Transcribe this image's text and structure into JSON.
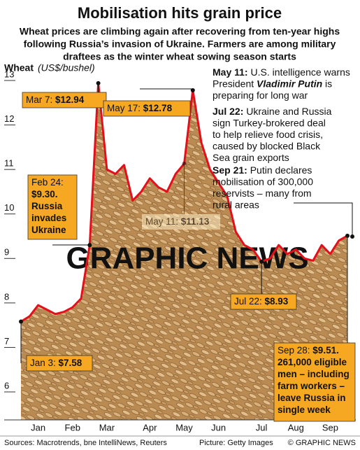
{
  "chart_data": {
    "type": "line",
    "title": "Mobilisation hits grain price",
    "subtitle": [
      "Wheat prices are climbing again after recovering from ten-year highs",
      "following Russia’s invasion of Ukraine. Farmers are among military",
      "draftees as the winter wheat sowing season starts"
    ],
    "y_label": "Wheat",
    "y_unit": "(US$/bushel)",
    "categories": [
      null,
      null,
      "Jan",
      null,
      null,
      null,
      "Feb",
      null,
      null,
      null,
      "Mar",
      null,
      null,
      null,
      null,
      "Apr",
      null,
      null,
      null,
      "May",
      null,
      null,
      null,
      "Jun",
      null,
      null,
      null,
      null,
      "Jul",
      null,
      null,
      null,
      "Aug",
      null,
      null,
      null,
      "Sep",
      null,
      null
    ],
    "series": [
      {
        "name": "Wheat",
        "color": "#e3101b",
        "values": [
          7.58,
          7.7,
          7.95,
          7.85,
          7.75,
          7.8,
          7.9,
          8.1,
          9.3,
          12.94,
          11.0,
          10.9,
          11.1,
          10.3,
          10.5,
          10.8,
          10.6,
          10.5,
          10.9,
          11.13,
          12.78,
          11.6,
          11.0,
          10.7,
          10.4,
          9.6,
          9.3,
          9.2,
          8.93,
          9.0,
          9.3,
          9.1,
          9.2,
          9.0,
          8.95,
          9.3,
          9.1,
          9.4,
          9.51
        ]
      }
    ],
    "ylim": [
      5.7,
      13.2
    ],
    "yticks": [
      6,
      7,
      8,
      9,
      10,
      11,
      12,
      13
    ],
    "callouts": [
      {
        "point": 9,
        "lines": [
          [
            {
              "t": "Mar 7: "
            },
            {
              "t": "$12.94",
              "b": true
            }
          ]
        ]
      },
      {
        "point": 0,
        "lines": [
          [
            {
              "t": "Jan 3: "
            },
            {
              "t": "$7.58",
              "b": true
            }
          ]
        ]
      },
      {
        "point": 8,
        "lines": [
          [
            {
              "t": "Feb 24:"
            }
          ],
          [
            {
              "t": "$9.30.",
              "b": true
            }
          ],
          [
            {
              "t": "Russia",
              "b": true
            }
          ],
          [
            {
              "t": "invades",
              "b": true
            }
          ],
          [
            {
              "t": "Ukraine",
              "b": true
            }
          ]
        ]
      },
      {
        "point": 20,
        "lines": [
          [
            {
              "t": "May 17: "
            },
            {
              "t": "$12.78",
              "b": true
            }
          ]
        ]
      },
      {
        "point": 19,
        "faded": true,
        "lines": [
          [
            {
              "t": "May 11: "
            },
            {
              "t": "$11.13",
              "b": true
            }
          ]
        ]
      },
      {
        "point": 28,
        "lines": [
          [
            {
              "t": "Jul 22: "
            },
            {
              "t": "$8.93",
              "b": true
            }
          ]
        ]
      },
      {
        "point": 38,
        "lines": [
          [
            {
              "t": "Sep 28: "
            },
            {
              "t": "$9.51.",
              "b": true
            }
          ],
          [
            {
              "t": "261,000 eligible",
              "b": true
            }
          ],
          [
            {
              "t": "men – including",
              "b": true
            }
          ],
          [
            {
              "t": "farm workers –",
              "b": true
            }
          ],
          [
            {
              "t": "leave Russia in",
              "b": true
            }
          ],
          [
            {
              "t": "single week",
              "b": true
            }
          ]
        ]
      }
    ],
    "notes": [
      {
        "lines": [
          [
            {
              "t": "May 11: ",
              "b": true
            },
            {
              "t": "U.S. intelligence warns"
            }
          ],
          [
            {
              "t": "President "
            },
            {
              "t": "Vladimir Putin",
              "b": true,
              "i": true
            },
            {
              "t": " is"
            }
          ],
          [
            {
              "t": "preparing for long war"
            }
          ]
        ]
      },
      {
        "lines": [
          [
            {
              "t": "Jul 22: ",
              "b": true
            },
            {
              "t": "Ukraine and Russia"
            }
          ],
          [
            {
              "t": "sign Turkey-brokered deal"
            }
          ],
          [
            {
              "t": "to help relieve food crisis,"
            }
          ],
          [
            {
              "t": "caused by blocked Black"
            }
          ],
          [
            {
              "t": "Sea grain exports"
            }
          ]
        ]
      },
      {
        "lines": [
          [
            {
              "t": "Sep 21: ",
              "b": true
            },
            {
              "t": "Putin declares"
            }
          ],
          [
            {
              "t": "mobilisation of 300,000"
            }
          ],
          [
            {
              "t": "reservists – many from"
            }
          ],
          [
            {
              "t": "rural areas"
            }
          ]
        ]
      }
    ],
    "watermark": "GRAPHIC NEWS",
    "sources": "Sources: Macrotrends, bne IntelliNews, Reuters",
    "picture": "Picture: Getty Images",
    "credit": "© GRAPHIC NEWS"
  }
}
